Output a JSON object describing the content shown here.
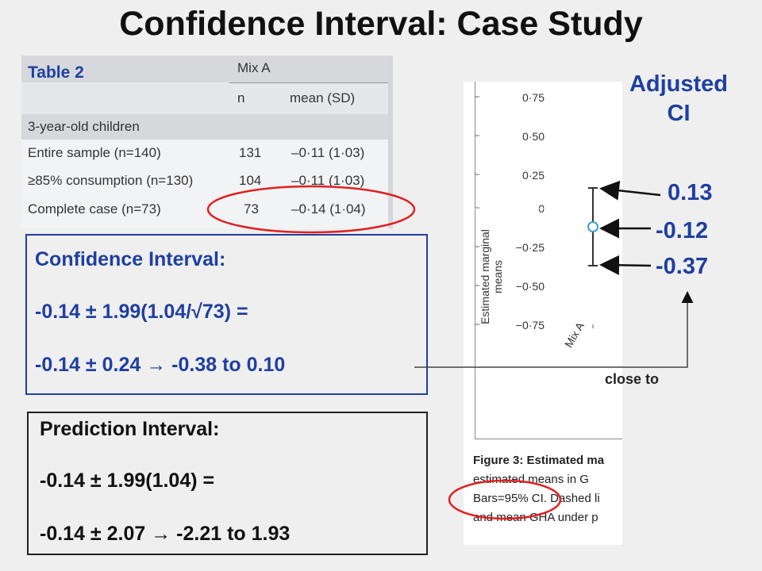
{
  "title": "Confidence Interval: Case Study",
  "table": {
    "label": "Table 2",
    "group_header": "Mix A",
    "col_n": "n",
    "col_mean": "mean (SD)",
    "section": "3-year-old children",
    "rows": [
      {
        "label": "Entire sample (n=140)",
        "n": "131",
        "mean": "–0·11 (1·03)"
      },
      {
        "label": "≥85% consumption (n=130)",
        "n": "104",
        "mean": "–0·11 (1·03)"
      },
      {
        "label": "Complete case (n=73)",
        "n": "73",
        "mean": "–0·14 (1·04)"
      }
    ]
  },
  "figure": {
    "ylabel": "Estimated marginal means",
    "ticks": [
      "0·75",
      "0·50",
      "0·25",
      "0",
      "−0·25",
      "−0·50",
      "−0·75"
    ],
    "xlabel": "Mix A",
    "caption": [
      "Figure 3: Estimated ma",
      "estimated means in G",
      "Bars=95% CI. Dashed li",
      "and mean GHA under p"
    ]
  },
  "adjusted": {
    "title_line1": "Adjusted",
    "title_line2": "CI",
    "upper": "0.13",
    "mid": "-0.12",
    "lower": "-0.37"
  },
  "confidence": {
    "title": "Confidence Interval:",
    "line1": "-0.14 ± 1.99(1.04/√73) =",
    "line2": "-0.14 ± 0.24 → -0.38 to 0.10"
  },
  "prediction": {
    "title": "Prediction Interval:",
    "line1": "-0.14 ± 1.99(1.04) =",
    "line2": "-0.14 ± 2.07 → -2.21 to 1.93"
  },
  "close_to": "close to",
  "colors": {
    "accent": "#1f3fa0",
    "highlight": "#e02020"
  }
}
